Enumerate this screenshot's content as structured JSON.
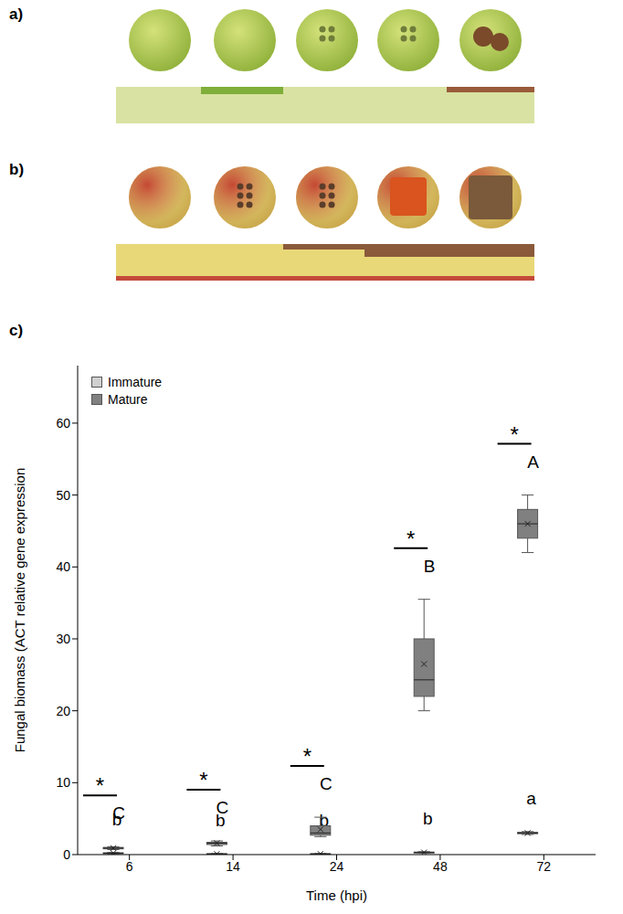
{
  "panel_labels": [
    "a)",
    "b)",
    "c)"
  ],
  "chart_data": {
    "type": "box",
    "categories": [
      "6",
      "14",
      "24",
      "48",
      "72"
    ],
    "x_label": "Time (hpi)",
    "y_label": "Fungal biomass (ACT relative gene expression",
    "ylim": [
      0,
      68
    ],
    "yticks": [
      0,
      10,
      20,
      30,
      40,
      50,
      60
    ],
    "legend": "upper left",
    "significance": [
      "*",
      "*",
      "*",
      "*",
      "*"
    ],
    "series": [
      {
        "name": "Immature",
        "color": "#d0d0d0",
        "marker": "x",
        "letters": [
          "b",
          "b",
          "b",
          "b",
          "a"
        ],
        "min": [
          0.1,
          0.05,
          0.05,
          0.2,
          2.8
        ],
        "q1": [
          0.15,
          0.08,
          0.08,
          0.25,
          2.9
        ],
        "median": [
          0.2,
          0.1,
          0.1,
          0.3,
          3.0
        ],
        "q3": [
          0.25,
          0.12,
          0.12,
          0.35,
          3.1
        ],
        "max": [
          0.3,
          0.15,
          0.15,
          0.4,
          3.2
        ],
        "mean": [
          0.2,
          0.1,
          0.1,
          0.3,
          3.0
        ]
      },
      {
        "name": "Mature",
        "color": "#808080",
        "marker": "x",
        "letters": [
          "C",
          "C",
          "C",
          "B",
          "A"
        ],
        "min": [
          0.7,
          1.2,
          2.5,
          20,
          42
        ],
        "q1": [
          0.8,
          1.4,
          2.7,
          22,
          44
        ],
        "median": [
          0.9,
          1.6,
          3.0,
          24.3,
          46
        ],
        "q3": [
          1.0,
          1.7,
          4.0,
          30,
          48
        ],
        "max": [
          1.1,
          1.9,
          5.2,
          35.5,
          50
        ],
        "mean": [
          0.9,
          1.6,
          3.5,
          26.5,
          46
        ]
      }
    ]
  }
}
